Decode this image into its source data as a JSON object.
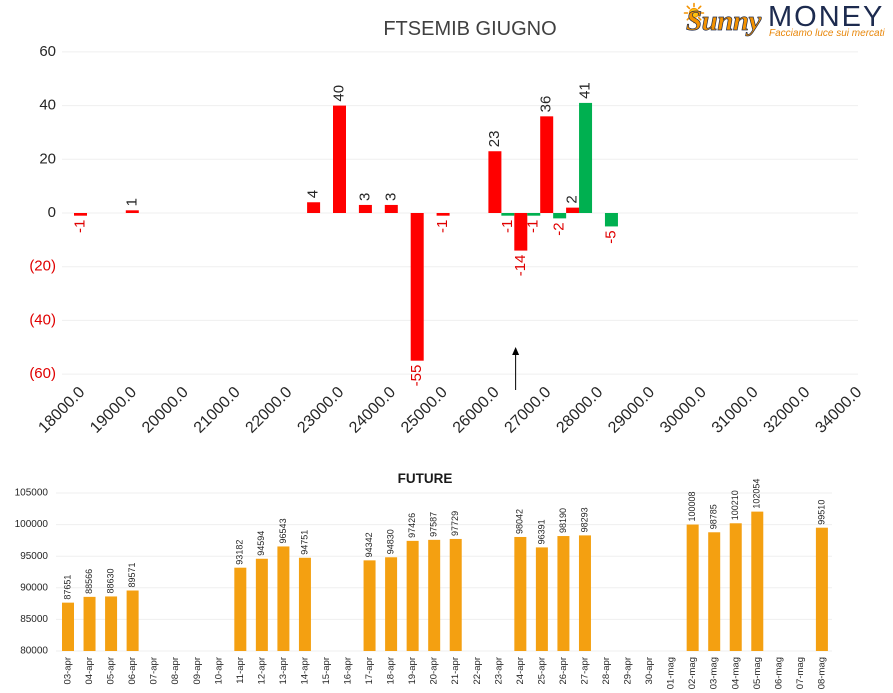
{
  "logo": {
    "icon": "sun-icon",
    "brand_script": "Sunny",
    "brand_main": "MONEY",
    "tagline": "Facciamo luce sui mercati"
  },
  "colors": {
    "text": "#262626",
    "negative_text": "#e00000",
    "gridline": "#efefef"
  },
  "chart_data": [
    {
      "type": "bar",
      "title": "FTSEMIB GIUGNO",
      "ylim": [
        -60,
        60
      ],
      "grid": true,
      "x_tick_labels": [
        "18000.0",
        "19000.0",
        "20000.0",
        "21000.0",
        "22000.0",
        "23000.0",
        "24000.0",
        "25000.0",
        "26000.0",
        "27000.0",
        "28000.0",
        "29000.0",
        "30000.0",
        "31000.0",
        "32000.0",
        "34000.0"
      ],
      "y_ticks": [
        60,
        40,
        20,
        0,
        -20,
        -40,
        -60
      ],
      "y_tick_labels": [
        "60",
        "40",
        "20",
        "0",
        "(20)",
        "(40)",
        "(60)"
      ],
      "series": [
        {
          "color": "#ff0000",
          "points": [
            {
              "x": 18000,
              "y": -1
            },
            {
              "x": 19000,
              "y": 1
            },
            {
              "x": 22500,
              "y": 4
            },
            {
              "x": 23000,
              "y": 40
            },
            {
              "x": 23500,
              "y": 3
            },
            {
              "x": 24000,
              "y": 3
            },
            {
              "x": 24500,
              "y": -55
            },
            {
              "x": 25000,
              "y": -1
            },
            {
              "x": 26000,
              "y": 23
            },
            {
              "x": 26500,
              "y": -14
            },
            {
              "x": 27000,
              "y": 36
            },
            {
              "x": 27500,
              "y": 2
            }
          ]
        },
        {
          "color": "#00b050",
          "points": [
            {
              "x": 26250,
              "y": -1
            },
            {
              "x": 26750,
              "y": -1
            },
            {
              "x": 27250,
              "y": -2
            },
            {
              "x": 27750,
              "y": 41
            },
            {
              "x": 28250,
              "y": -5
            }
          ]
        }
      ],
      "marker_arrow_x": 26400
    },
    {
      "type": "bar",
      "title": "FUTURE",
      "ylim": [
        80000,
        105000
      ],
      "grid": true,
      "color": "#f4a011",
      "y_ticks": [
        105000,
        100000,
        95000,
        90000,
        85000,
        80000
      ],
      "y_tick_labels": [
        "105000",
        "100000",
        "95000",
        "90000",
        "85000",
        "80000"
      ],
      "categories": [
        "03-apr",
        "04-apr",
        "05-apr",
        "06-apr",
        "07-apr",
        "08-apr",
        "09-apr",
        "10-apr",
        "11-apr",
        "12-apr",
        "13-apr",
        "14-apr",
        "15-apr",
        "16-apr",
        "17-apr",
        "18-apr",
        "19-apr",
        "20-apr",
        "21-apr",
        "22-apr",
        "23-apr",
        "24-apr",
        "25-apr",
        "26-apr",
        "27-apr",
        "28-apr",
        "29-apr",
        "30-apr",
        "01-mag",
        "02-mag",
        "03-mag",
        "04-mag",
        "05-mag",
        "06-mag",
        "07-mag",
        "08-mag"
      ],
      "values": [
        87651,
        88566,
        88630,
        89571,
        null,
        null,
        null,
        null,
        93182,
        94594,
        96543,
        94751,
        null,
        null,
        94342,
        94830,
        97426,
        97587,
        97729,
        null,
        null,
        98042,
        96391,
        98190,
        98293,
        null,
        null,
        null,
        null,
        100008,
        98785,
        100210,
        102054,
        null,
        null,
        99510
      ]
    }
  ]
}
